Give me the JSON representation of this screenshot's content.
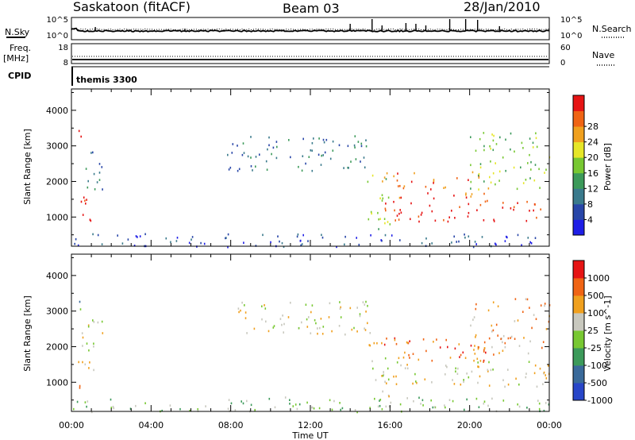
{
  "header": {
    "station": "Saskatoon (fitACF)",
    "beam": "Beam 03",
    "date": "28/Jan/2010"
  },
  "noise_panel": {
    "left_label": "N.Sky",
    "right_label": "N.Search",
    "left_ticks": [
      "10^5",
      "10^0"
    ],
    "right_ticks": [
      "10^5",
      "10^0"
    ]
  },
  "freq_panel": {
    "left_label_1": "Freq.",
    "left_label_2": "[MHz]",
    "right_label": "Nave",
    "left_ticks": [
      "18",
      "8"
    ],
    "right_ticks": [
      "60",
      "0"
    ]
  },
  "cpid_panel": {
    "label": "CPID",
    "program": "themis 3300"
  },
  "x_axis": {
    "label": "Time UT",
    "ticks": [
      "00:00",
      "04:00",
      "08:00",
      "12:00",
      "16:00",
      "20:00",
      "00:00"
    ],
    "range_hours": [
      0,
      24
    ]
  },
  "y_axis": {
    "label": "Slant Range [km]",
    "ticks": [
      "1000",
      "2000",
      "3000",
      "4000"
    ],
    "range_km": [
      180,
      4600
    ]
  },
  "chart_data": [
    {
      "type": "heatmap",
      "name": "power",
      "colorbar_label": "Power [dB]",
      "colorbar_ticks": [
        "4",
        "8",
        "12",
        "16",
        "20",
        "24",
        "28"
      ],
      "colorbar_colors": [
        "#1e1ee6",
        "#2846a8",
        "#3a7a8c",
        "#3c9a5a",
        "#78c832",
        "#e6e628",
        "#f0a01e",
        "#f06414",
        "#e61414"
      ],
      "regions": [
        {
          "t": [
            0.1,
            0.5
          ],
          "r": [
            2900,
            3450
          ],
          "level": 8
        },
        {
          "t": [
            0.3,
            1.1
          ],
          "r": [
            750,
            1650
          ],
          "level": 8
        },
        {
          "t": [
            0.5,
            1.6
          ],
          "r": [
            1700,
            2900
          ],
          "level": 2
        },
        {
          "t": [
            0.0,
            24.0
          ],
          "r": [
            180,
            550
          ],
          "level": 1
        },
        {
          "t": [
            7.8,
            15.0
          ],
          "r": [
            2300,
            3300
          ],
          "level": 2
        },
        {
          "t": [
            14.8,
            16.0
          ],
          "r": [
            500,
            2200
          ],
          "level": 4
        },
        {
          "t": [
            15.5,
            24.0
          ],
          "r": [
            900,
            1500
          ],
          "level": 8
        },
        {
          "t": [
            15.5,
            21.0
          ],
          "r": [
            1550,
            2300
          ],
          "level": 7
        },
        {
          "t": [
            20.0,
            24.0
          ],
          "r": [
            1800,
            3400
          ],
          "level": 4
        }
      ]
    },
    {
      "type": "heatmap",
      "name": "velocity",
      "colorbar_label": "Velocity [m s^-1]",
      "colorbar_ticks": [
        "1000",
        "500",
        "100",
        "25",
        "-25",
        "-100",
        "-500",
        "-1000"
      ],
      "colorbar_colors": [
        "#2846c8",
        "#3a6a9a",
        "#3c9a5a",
        "#78c832",
        "#c8c8be",
        "#f0a01e",
        "#f06414",
        "#e61414"
      ],
      "regions": [
        {
          "t": [
            0.1,
            0.5
          ],
          "r": [
            2900,
            3450
          ],
          "level": 2
        },
        {
          "t": [
            0.3,
            1.1
          ],
          "r": [
            600,
            1650
          ],
          "level": 5
        },
        {
          "t": [
            0.5,
            1.6
          ],
          "r": [
            1700,
            2900
          ],
          "level": 4
        },
        {
          "t": [
            0.0,
            24.0
          ],
          "r": [
            180,
            600
          ],
          "level": 3
        },
        {
          "t": [
            7.8,
            15.0
          ],
          "r": [
            2300,
            3300
          ],
          "level": 4
        },
        {
          "t": [
            14.8,
            16.0
          ],
          "r": [
            500,
            2200
          ],
          "level": 4
        },
        {
          "t": [
            15.5,
            24.0
          ],
          "r": [
            900,
            1600
          ],
          "level": 4
        },
        {
          "t": [
            15.5,
            21.0
          ],
          "r": [
            1600,
            2300
          ],
          "level": 6
        },
        {
          "t": [
            20.0,
            24.0
          ],
          "r": [
            1800,
            3400
          ],
          "level": 5
        }
      ]
    }
  ]
}
